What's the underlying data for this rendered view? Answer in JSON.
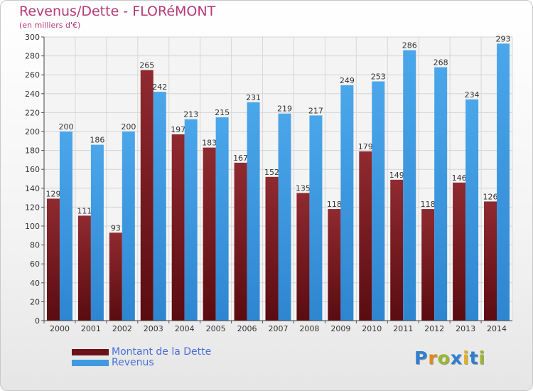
{
  "header": {
    "title": "Revenus/Dette - FLORéMONT",
    "subtitle": "(en milliers d'€)"
  },
  "chart_data": {
    "type": "bar",
    "categories": [
      "2000",
      "2001",
      "2002",
      "2003",
      "2004",
      "2005",
      "2006",
      "2007",
      "2008",
      "2009",
      "2010",
      "2011",
      "2012",
      "2013",
      "2014"
    ],
    "series": [
      {
        "name": "Montant de la Dette",
        "color": "#7a1d23",
        "values": [
          129,
          111,
          93,
          265,
          197,
          183,
          167,
          152,
          135,
          118,
          179,
          149,
          118,
          146,
          126
        ],
        "labels": [
          "129",
          "111",
          "93",
          "265",
          "197",
          "183",
          "167",
          "152",
          "135",
          "118",
          "179",
          "149",
          "118",
          "146",
          "126"
        ]
      },
      {
        "name": "Revenus",
        "color": "#3f9ae0",
        "values": [
          200,
          186,
          200,
          242,
          213,
          215,
          231,
          219,
          217,
          249,
          253,
          286,
          268,
          234,
          293
        ],
        "labels": [
          "200",
          "186",
          "200",
          "242",
          "213",
          "215",
          "231",
          "219",
          "217",
          "249",
          "253",
          "286",
          "268",
          "234",
          "293"
        ]
      }
    ],
    "ylim": [
      0,
      300
    ],
    "yticks": [
      "0",
      "20",
      "40",
      "60",
      "80",
      "100",
      "120",
      "140",
      "160",
      "180",
      "200",
      "220",
      "240",
      "260",
      "280",
      "300"
    ],
    "grid": true,
    "legend_position": "bottom-left"
  },
  "legend": {
    "items": [
      {
        "label": "Montant de la Dette",
        "color": "#6b1218"
      },
      {
        "label": "Revenus",
        "color": "#3f9ae0"
      }
    ]
  },
  "brand": {
    "letters": [
      "P",
      "r",
      "o",
      "x",
      "i",
      "t",
      "i"
    ],
    "colors": [
      "#2f7fd0",
      "#e08a1e",
      "#9ab82b",
      "#2f7fd0",
      "#e0b01e",
      "#2f7fd0",
      "#9ab82b"
    ]
  }
}
